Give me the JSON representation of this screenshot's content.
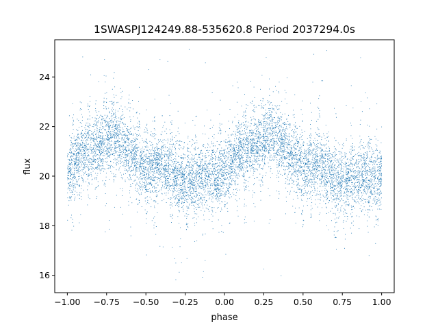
{
  "chart_data": {
    "type": "scatter",
    "title": "1SWASPJ124249.88-535620.8 Period 2037294.0s",
    "xlabel": "phase",
    "ylabel": "flux",
    "xlim": [
      -1.08,
      1.08
    ],
    "ylim": [
      15.3,
      25.5
    ],
    "xticks": [
      -1.0,
      -0.75,
      -0.5,
      -0.25,
      0.0,
      0.25,
      0.5,
      0.75,
      1.0
    ],
    "xtick_labels": [
      "−1.00",
      "−0.75",
      "−0.50",
      "−0.25",
      "0.00",
      "0.25",
      "0.50",
      "0.75",
      "1.00"
    ],
    "yticks": [
      16,
      18,
      20,
      22,
      24
    ],
    "ytick_labels": [
      "16",
      "18",
      "20",
      "22",
      "24"
    ],
    "grid": false,
    "marker_color": "#1f77b4",
    "series": [
      {
        "phase": [
          -1.0,
          -0.95,
          -0.9,
          -0.85,
          -0.8,
          -0.75,
          -0.7,
          -0.65,
          -0.6,
          -0.55,
          -0.5,
          -0.45,
          -0.4,
          -0.35,
          -0.3,
          -0.25,
          -0.2,
          -0.15,
          -0.1,
          -0.05,
          0.0,
          0.05,
          0.1,
          0.15,
          0.2,
          0.25,
          0.3,
          0.35,
          0.4,
          0.45,
          0.5,
          0.55,
          0.6,
          0.65,
          0.7,
          0.75,
          0.8,
          0.85,
          0.9,
          0.95,
          1.0
        ],
        "mean_flux": [
          20.0,
          20.6,
          21.0,
          21.1,
          21.2,
          21.5,
          21.6,
          21.4,
          21.0,
          20.6,
          20.3,
          20.4,
          20.5,
          20.2,
          19.9,
          19.8,
          19.9,
          20.0,
          20.0,
          19.9,
          20.1,
          20.6,
          21.0,
          21.1,
          21.2,
          21.5,
          21.6,
          21.4,
          21.0,
          20.6,
          20.3,
          20.4,
          20.5,
          20.2,
          19.9,
          19.8,
          19.9,
          20.0,
          20.0,
          19.9,
          20.1
        ],
        "spread": 0.8,
        "outlier_range": [
          15.8,
          25.2
        ]
      }
    ]
  }
}
